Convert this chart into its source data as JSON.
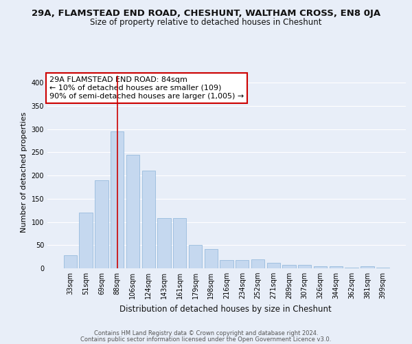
{
  "title": "29A, FLAMSTEAD END ROAD, CHESHUNT, WALTHAM CROSS, EN8 0JA",
  "subtitle": "Size of property relative to detached houses in Cheshunt",
  "xlabel": "Distribution of detached houses by size in Cheshunt",
  "ylabel": "Number of detached properties",
  "footer1": "Contains HM Land Registry data © Crown copyright and database right 2024.",
  "footer2": "Contains public sector information licensed under the Open Government Licence v3.0.",
  "categories": [
    "33sqm",
    "51sqm",
    "69sqm",
    "88sqm",
    "106sqm",
    "124sqm",
    "143sqm",
    "161sqm",
    "179sqm",
    "198sqm",
    "216sqm",
    "234sqm",
    "252sqm",
    "271sqm",
    "289sqm",
    "307sqm",
    "326sqm",
    "344sqm",
    "362sqm",
    "381sqm",
    "399sqm"
  ],
  "values": [
    28,
    120,
    190,
    295,
    245,
    210,
    108,
    108,
    50,
    42,
    18,
    18,
    20,
    12,
    8,
    8,
    4,
    4,
    2,
    4,
    2
  ],
  "bar_color": "#c5d8ef",
  "bar_edge_color": "#8ab4d8",
  "annotation_box_color": "#ffffff",
  "annotation_box_edge": "#cc0000",
  "vline_color": "#cc0000",
  "vline_x": 3,
  "annotation_title": "29A FLAMSTEAD END ROAD: 84sqm",
  "annotation_line1": "← 10% of detached houses are smaller (109)",
  "annotation_line2": "90% of semi-detached houses are larger (1,005) →",
  "ylim": [
    0,
    415
  ],
  "yticks": [
    0,
    50,
    100,
    150,
    200,
    250,
    300,
    350,
    400
  ],
  "bg_color": "#e8eef8",
  "grid_color": "#ffffff",
  "title_fontsize": 9.5,
  "subtitle_fontsize": 8.5,
  "annot_fontsize": 8.0,
  "ylabel_fontsize": 8.0,
  "xlabel_fontsize": 8.5,
  "tick_fontsize": 7.0,
  "footer_fontsize": 6.0
}
